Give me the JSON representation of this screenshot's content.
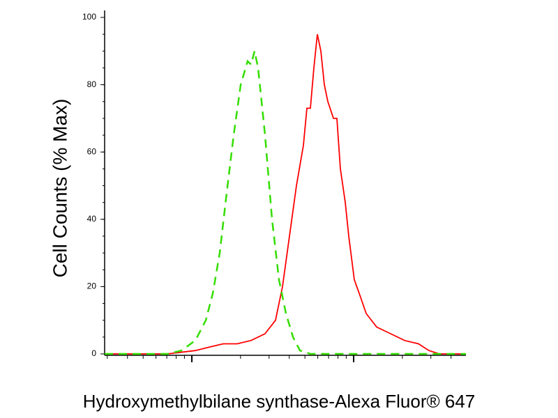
{
  "chart_data": {
    "type": "line",
    "ylabel": "Cell Counts (% Max)",
    "xlabel": "Hydroxymethylbilane synthase-Alexa Fluor® 647",
    "xscale": "log",
    "xlim": [
      289,
      49430
    ],
    "xticks": [
      1000,
      10000
    ],
    "ylim": [
      0,
      100
    ],
    "yticks": [
      0,
      20,
      40,
      60,
      80,
      100
    ],
    "series": [
      {
        "color": "#ff0000",
        "dash": false,
        "x": [
          289,
          706,
          1051,
          1281,
          1563,
          1906,
          2324,
          2835,
          3289,
          3634,
          4013,
          4432,
          4893,
          5143,
          5404,
          5679,
          5968,
          6271,
          6590,
          6925,
          7502,
          7882,
          8283,
          8876,
          9327,
          10100,
          10820,
          11950,
          13880,
          16920,
          20630,
          25150,
          29220,
          33900,
          49430
        ],
        "values": [
          0,
          0,
          1,
          2,
          3,
          3,
          4,
          6,
          10,
          20,
          35,
          50,
          62,
          73,
          73,
          85,
          95,
          90,
          80,
          75,
          70,
          70,
          55,
          45,
          35,
          22,
          18,
          12,
          8,
          6,
          4,
          3,
          1,
          0,
          0
        ]
      },
      {
        "color": "#33dd00",
        "dash": true,
        "x": [
          289,
          706,
          861,
          1051,
          1220,
          1347,
          1487,
          1643,
          1814,
          2004,
          2212,
          2324,
          2442,
          2566,
          2835,
          3131,
          3458,
          3819,
          4218,
          4659,
          5404,
          49430
        ],
        "values": [
          0,
          0,
          1,
          4,
          10,
          18,
          30,
          48,
          65,
          80,
          87,
          86,
          90,
          85,
          65,
          40,
          22,
          12,
          5,
          1,
          0,
          0
        ]
      }
    ]
  }
}
